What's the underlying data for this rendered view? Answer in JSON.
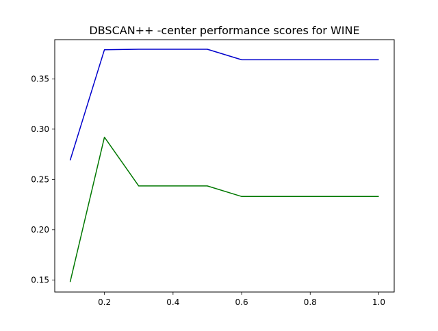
{
  "chart_data": {
    "type": "line",
    "title": "DBSCAN++ -center performance scores for WINE",
    "xlabel": "",
    "ylabel": "",
    "xlim": [
      0.055,
      1.045
    ],
    "ylim": [
      0.138,
      0.389
    ],
    "xticks": [
      0.2,
      0.4,
      0.6,
      0.8,
      1.0
    ],
    "xtick_labels": [
      "0.2",
      "0.4",
      "0.6",
      "0.8",
      "1.0"
    ],
    "yticks": [
      0.15,
      0.2,
      0.25,
      0.3,
      0.35
    ],
    "ytick_labels": [
      "0.15",
      "0.20",
      "0.25",
      "0.30",
      "0.35"
    ],
    "grid": false,
    "legend": false,
    "series": [
      {
        "color": "#0000cc",
        "x": [
          0.1,
          0.2,
          0.3,
          0.4,
          0.5,
          0.6,
          0.7,
          0.8,
          0.9,
          1.0
        ],
        "y": [
          0.269,
          0.379,
          0.3795,
          0.3795,
          0.3795,
          0.369,
          0.369,
          0.369,
          0.369,
          0.369
        ]
      },
      {
        "color": "#007700",
        "x": [
          0.1,
          0.2,
          0.3,
          0.4,
          0.5,
          0.6,
          0.7,
          0.8,
          0.9,
          1.0
        ],
        "y": [
          0.148,
          0.292,
          0.2435,
          0.2435,
          0.2435,
          0.233,
          0.233,
          0.233,
          0.233,
          0.233
        ]
      }
    ]
  }
}
